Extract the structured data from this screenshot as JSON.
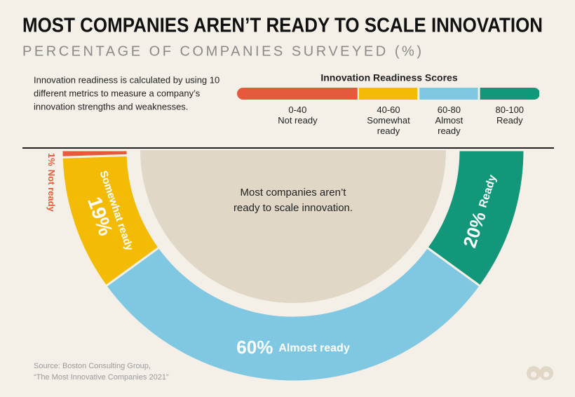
{
  "chart_data": {
    "type": "donut",
    "title": "MOST COMPANIES AREN’T READY TO SCALE INNOVATION",
    "subtitle": "PERCENTAGE OF COMPANIES SURVEYED (%)",
    "note": [
      "Innovation readiness is calculated by using 10",
      "different metrics to measure a company’s",
      "innovation strengths and weaknesses."
    ],
    "legend_title": "Innovation Readiness Scores",
    "legend_scale": [
      {
        "label": "0-40",
        "from": 0,
        "to": 40
      },
      {
        "label": "40-60",
        "from": 40,
        "to": 60
      },
      {
        "label": "60-80",
        "from": 60,
        "to": 80
      },
      {
        "label": "80-100",
        "from": 80,
        "to": 100
      }
    ],
    "categories": [
      "Not ready",
      "Somewhat ready",
      "Almost ready",
      "Ready"
    ],
    "values": [
      1,
      19,
      60,
      20
    ],
    "value_labels": [
      "1%",
      "19%",
      "60%",
      "20%"
    ],
    "colors": [
      "#e65a3c",
      "#f4bb05",
      "#80c8e2",
      "#12977a"
    ],
    "center_text": [
      "Most companies aren’t",
      "ready to scale innovation."
    ],
    "source": [
      "Source:  Boston Consulting Group,",
      "“The Most Innovative Companies 2021”"
    ]
  }
}
